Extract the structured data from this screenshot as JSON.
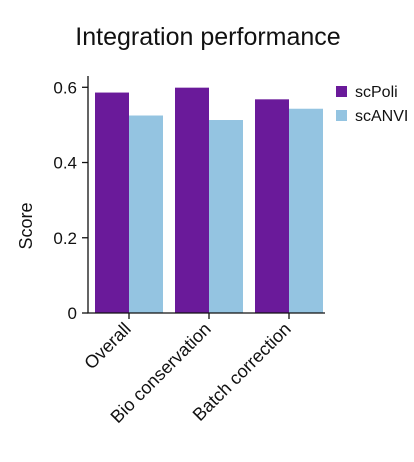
{
  "chart_data": {
    "type": "bar",
    "title": "Integration performance",
    "ylabel": "Score",
    "xlabel": "",
    "ylim": [
      0,
      0.63
    ],
    "yticks": [
      0,
      0.2,
      0.4,
      0.6
    ],
    "ytick_labels": [
      "0",
      "0.2",
      "0.4",
      "0.6"
    ],
    "categories": [
      "Overall",
      "Bio conservation",
      "Batch correction"
    ],
    "series": [
      {
        "name": "scPoli",
        "color": "#6a1a9a",
        "values": [
          0.586,
          0.599,
          0.568
        ]
      },
      {
        "name": "scANVI",
        "color": "#94c4e1",
        "values": [
          0.525,
          0.513,
          0.543
        ]
      }
    ],
    "legend_position": "top-right",
    "grid": false
  }
}
